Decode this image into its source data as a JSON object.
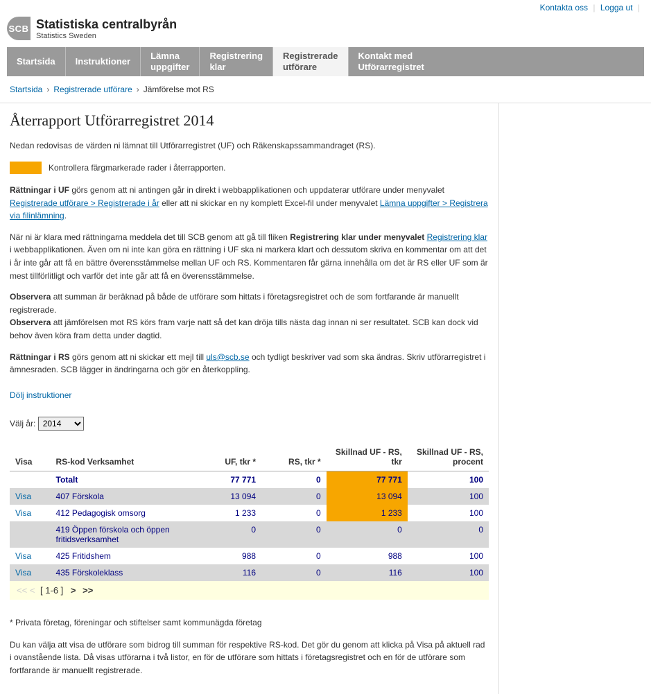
{
  "top_links": {
    "contact": "Kontakta oss",
    "logout": "Logga ut"
  },
  "logo": {
    "badge": "SCB",
    "line1": "Statistiska centralbyrån",
    "line2": "Statistics Sweden"
  },
  "nav": {
    "items": [
      {
        "label": "Startsida",
        "active": false
      },
      {
        "label": "Instruktioner",
        "active": false
      },
      {
        "label": "Lämna\nuppgifter",
        "active": false
      },
      {
        "label": "Registrering\nklar",
        "active": false
      },
      {
        "label": "Registrerade\nutförare",
        "active": true
      },
      {
        "label": "Kontakt med\nUtförarregistret",
        "active": false
      }
    ]
  },
  "breadcrumb": {
    "items": [
      "Startsida",
      "Registrerade utförare",
      "Jämförelse mot RS"
    ]
  },
  "page": {
    "title": "Återrapport Utförarregistret 2014",
    "intro": "Nedan redovisas de värden ni lämnat till Utförarregistret (UF) och Räkenskapssammandraget (RS).",
    "orange_label": "Kontrollera färgmarkerade rader i återrapporten.",
    "p1_prefix": "Rättningar i UF",
    "p1_a": " görs genom att ni antingen går in direkt i webbapplikationen och uppdaterar utförare under menyvalet ",
    "p1_link1": "Registrerade utförare > Registrerade i år",
    "p1_b": " eller att ni skickar en ny komplett Excel-fil under menyvalet ",
    "p1_link2": "Lämna uppgifter > Registrera via filinlämning",
    "p1_c": ".",
    "p2_a": "När ni är klara med rättningarna meddela det till SCB genom att gå till fliken ",
    "p2_bold": "Registrering klar under menyvalet ",
    "p2_link": "Registrering klar",
    "p2_b": " i webbapplikationen. Även om ni inte kan göra en rättning i UF ska ni markera klart och dessutom skriva en kommentar om att det i år inte går att få en bättre överensstämmelse mellan UF och RS. Kommentaren får gärna innehålla om det är RS eller UF som är mest tillförlitligt och varför det inte går att få en överensstämmelse.",
    "p3_bold": "Observera",
    "p3_a": " att summan är beräknad på både de utförare som hittats i företagsregistret och de som fortfarande är manuellt registrerade.",
    "p4_bold": "Observera",
    "p4_a": " att jämförelsen mot RS körs fram varje natt så det kan dröja tills nästa dag innan ni ser resultatet. SCB kan dock vid behov även köra fram detta under dagtid.",
    "p5_bold": "Rättningar i RS",
    "p5_a": " görs genom att ni skickar ett mejl till ",
    "p5_link": "uls@scb.se",
    "p5_b": " och tydligt beskriver vad som ska ändras. Skriv utförarregistret i ämnesraden. SCB lägger in ändringarna och gör en återkoppling.",
    "toggle": "Dölj instruktioner",
    "year_label": "Välj år: ",
    "year_value": "2014",
    "footnote": "* Privata företag, föreningar och stiftelser samt kommunägda företag",
    "footer_para": "Du kan välja att visa de utförare som bidrog till summan för respektive RS-kod. Det gör du genom att klicka på Visa på aktuell rad i ovanstående lista. Då visas utförarna i två listor, en för de utförare som hittats i företagsregistret och en för de utförare som fortfarande är manuellt registrerade."
  },
  "table": {
    "columns": [
      "Visa",
      "RS-kod Verksamhet",
      "UF, tkr *",
      "RS, tkr *",
      "Skillnad UF - RS, tkr",
      "Skillnad UF - RS, procent"
    ],
    "total_label": "Totalt",
    "total": {
      "uf": "77 771",
      "rs": "0",
      "diff": "77 771",
      "pct": "100"
    },
    "rows": [
      {
        "visa": "Visa",
        "label": "407 Förskola",
        "uf": "13 094",
        "rs": "0",
        "diff": "13 094",
        "pct": "100",
        "highlight": true,
        "alt": true
      },
      {
        "visa": "Visa",
        "label": "412 Pedagogisk omsorg",
        "uf": "1 233",
        "rs": "0",
        "diff": "1 233",
        "pct": "100",
        "highlight": true,
        "alt": false
      },
      {
        "visa": "",
        "label": "419 Öppen förskola och öppen fritidsverksamhet",
        "uf": "0",
        "rs": "0",
        "diff": "0",
        "pct": "0",
        "highlight": false,
        "alt": true
      },
      {
        "visa": "Visa",
        "label": "425 Fritidshem",
        "uf": "988",
        "rs": "0",
        "diff": "988",
        "pct": "100",
        "highlight": false,
        "alt": false
      },
      {
        "visa": "Visa",
        "label": "435 Förskoleklass",
        "uf": "116",
        "rs": "0",
        "diff": "116",
        "pct": "100",
        "highlight": false,
        "alt": true
      }
    ],
    "visa_label": "Visa",
    "highlight_color": "#f7a600",
    "alt_row_color": "#d8d8d8",
    "num_color": "#000080"
  },
  "pager": {
    "prev2": "<<",
    "prev1": "<",
    "range": "[ 1-6 ]",
    "next1": ">",
    "next2": ">>"
  }
}
